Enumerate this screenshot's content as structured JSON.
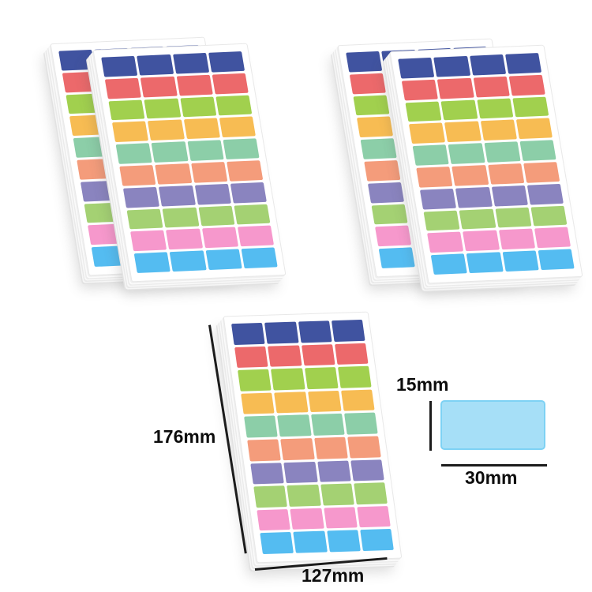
{
  "sheet": {
    "rows": 10,
    "columns": 4,
    "paper_color": "#ffffff",
    "row_colors": [
      "#4053a0",
      "#ec696b",
      "#a1d04e",
      "#f7bc53",
      "#8ccea8",
      "#f49c7b",
      "#8a84bf",
      "#a4d173",
      "#f698cc",
      "#54bcf1"
    ]
  },
  "pads": {
    "top_left_count": 2,
    "top_right_count": 2,
    "bottom_count": 1
  },
  "dimensions": {
    "sheet_height": "176mm",
    "sheet_width": "127mm",
    "sticker_height": "15mm",
    "sticker_width": "30mm"
  },
  "swatch": {
    "fill": "#a6dff7",
    "border": "#7ed2f4"
  }
}
